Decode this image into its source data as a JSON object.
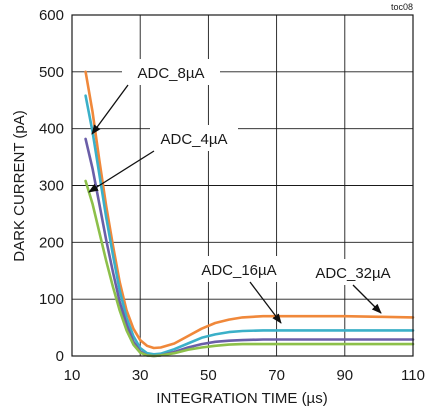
{
  "chart_data": {
    "type": "line",
    "title": "",
    "tag": "toc08",
    "xlabel": "INTEGRATION TIME (µs)",
    "ylabel": "DARK CURRENT (pA)",
    "xlim": [
      10,
      110
    ],
    "ylim": [
      0,
      600
    ],
    "xticks": [
      10,
      30,
      50,
      70,
      90,
      110
    ],
    "yticks": [
      0,
      100,
      200,
      300,
      400,
      500,
      600
    ],
    "grid": true,
    "series": [
      {
        "name": "ADC_8µA",
        "color": "#f0883a",
        "x": [
          14,
          16,
          18,
          20,
          22,
          24,
          26,
          28,
          30,
          32,
          34,
          36,
          40,
          44,
          48,
          52,
          56,
          60,
          66,
          70,
          80,
          90,
          100,
          110
        ],
        "y": [
          500,
          430,
          345,
          265,
          195,
          130,
          80,
          48,
          28,
          18,
          14,
          15,
          22,
          35,
          48,
          58,
          64,
          68,
          70,
          70,
          70,
          70,
          69,
          68
        ]
      },
      {
        "name": "ADC_16µA",
        "color": "#3bb0c8",
        "x": [
          14,
          16,
          18,
          20,
          22,
          24,
          26,
          28,
          30,
          32,
          34,
          36,
          40,
          44,
          48,
          52,
          56,
          60,
          66,
          70,
          80,
          90,
          100,
          110
        ],
        "y": [
          458,
          395,
          320,
          245,
          178,
          115,
          67,
          35,
          14,
          5,
          3,
          4,
          12,
          22,
          32,
          38,
          42,
          44,
          45,
          45,
          45,
          45,
          45,
          45
        ]
      },
      {
        "name": "ADC_32µA",
        "color": "#6a5ea8",
        "x": [
          14,
          16,
          18,
          20,
          22,
          24,
          26,
          28,
          30,
          32,
          34,
          36,
          40,
          44,
          48,
          52,
          56,
          60,
          66,
          70,
          80,
          90,
          100,
          110
        ],
        "y": [
          382,
          330,
          268,
          205,
          148,
          95,
          55,
          25,
          8,
          1,
          0,
          1,
          7,
          15,
          21,
          25,
          27,
          28,
          29,
          29,
          29,
          29,
          29,
          29
        ]
      },
      {
        "name": "ADC_4µA",
        "color": "#8dc04a",
        "x": [
          14,
          16,
          18,
          20,
          22,
          24,
          26,
          28,
          30,
          32,
          34,
          36,
          40,
          44,
          48,
          52,
          56,
          60,
          66,
          70,
          80,
          90,
          100,
          110
        ],
        "y": [
          308,
          268,
          218,
          168,
          122,
          80,
          45,
          20,
          6,
          1,
          0,
          1,
          5,
          11,
          15,
          18,
          20,
          21,
          21,
          21,
          21,
          21,
          21,
          21
        ]
      }
    ],
    "annotations": [
      {
        "text": "ADC_8µA",
        "series": "ADC_8µA"
      },
      {
        "text": "ADC_4µA",
        "series": "ADC_4µA"
      },
      {
        "text": "ADC_16µA",
        "series": "ADC_16µA"
      },
      {
        "text": "ADC_32µA",
        "series": "ADC_32µA"
      }
    ]
  }
}
